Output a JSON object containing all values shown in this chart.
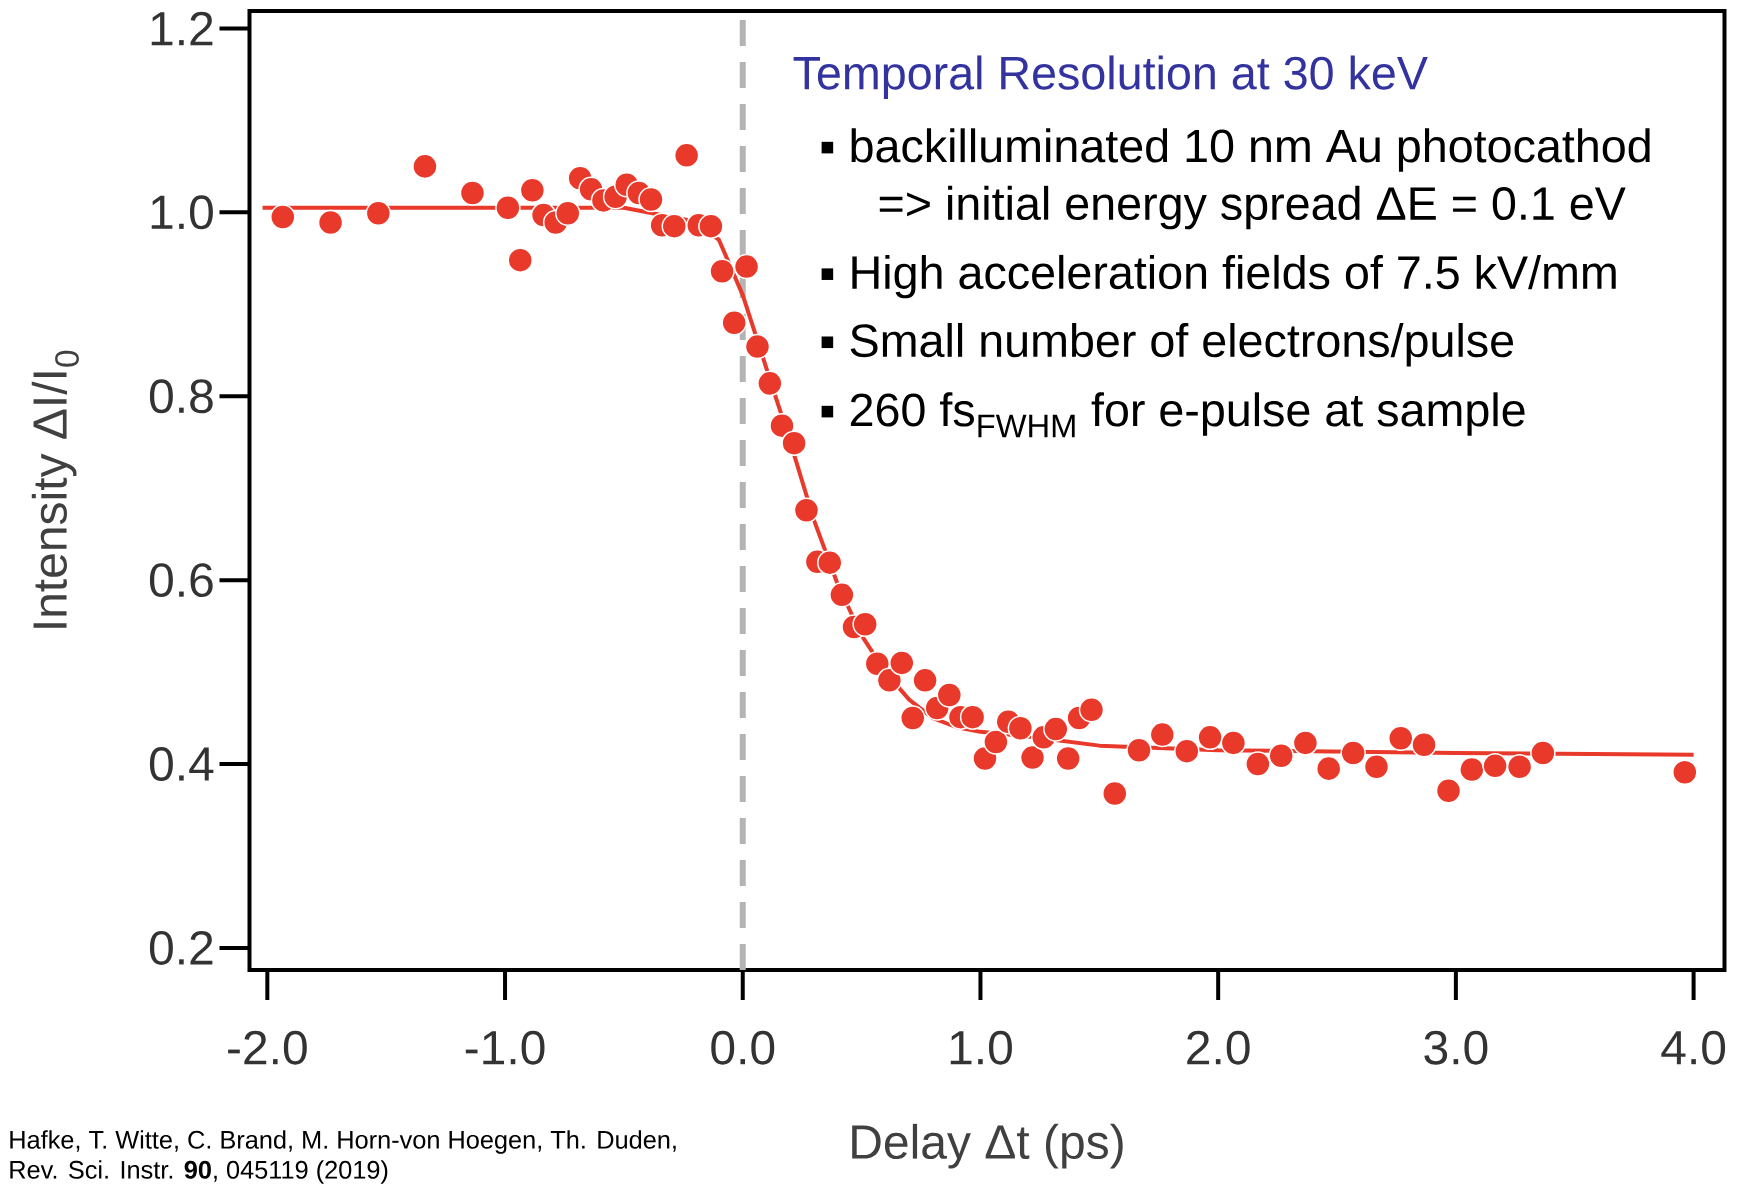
{
  "chart_data": {
    "type": "scatter",
    "xlabel": "Delay Δt (ps)",
    "ylabel": "Intensity ΔI/I$_{0}$",
    "xlim": [
      -2.075,
      4.13
    ],
    "ylim": [
      0.176,
      1.219
    ],
    "xticks": [
      {
        "value": -2,
        "label": "-2.0"
      },
      {
        "value": -1,
        "label": "-1.0"
      },
      {
        "value": 0,
        "label": "0.0"
      },
      {
        "value": 1,
        "label": "1.0"
      },
      {
        "value": 2,
        "label": "2.0"
      },
      {
        "value": 3,
        "label": "3.0"
      },
      {
        "value": 4,
        "label": "4.0"
      }
    ],
    "yticks": [
      {
        "value": 0.2,
        "label": "0.2"
      },
      {
        "value": 0.4,
        "label": "0.4"
      },
      {
        "value": 0.6,
        "label": "0.6"
      },
      {
        "value": 0.8,
        "label": "0.8"
      },
      {
        "value": 1.0,
        "label": "1.0"
      },
      {
        "value": 1.2,
        "label": "1.2"
      }
    ],
    "marker": "circle",
    "series": [
      {
        "type": "scatter",
        "color": "#e8392b",
        "x": [
          -1.935,
          -1.734,
          -1.533,
          -1.337,
          -1.137,
          -0.988,
          -0.936,
          -0.885,
          -0.838,
          -0.787,
          -0.736,
          -0.684,
          -0.638,
          -0.586,
          -0.535,
          -0.488,
          -0.437,
          -0.386,
          -0.339,
          -0.288,
          -0.236,
          -0.185,
          -0.134,
          -0.087,
          -0.036,
          0.016,
          0.062,
          0.114,
          0.165,
          0.216,
          0.268,
          0.314,
          0.366,
          0.417,
          0.468,
          0.515,
          0.566,
          0.617,
          0.669,
          0.715,
          0.767,
          0.818,
          0.869,
          0.916,
          0.967,
          1.019,
          1.065,
          1.117,
          1.168,
          1.219,
          1.266,
          1.317,
          1.369,
          1.415,
          1.467,
          1.565,
          1.667,
          1.765,
          1.868,
          1.966,
          2.064,
          2.167,
          2.265,
          2.367,
          2.465,
          2.568,
          2.666,
          2.768,
          2.866,
          2.969,
          3.067,
          3.165,
          3.268,
          3.366,
          3.963
        ],
        "values": [
          0.995,
          0.989,
          0.999,
          1.05,
          1.021,
          1.005,
          0.948,
          1.024,
          0.997,
          0.989,
          0.999,
          1.037,
          1.025,
          1.013,
          1.017,
          1.03,
          1.021,
          1.014,
          0.986,
          0.985,
          1.062,
          0.986,
          0.985,
          0.936,
          0.88,
          0.941,
          0.854,
          0.814,
          0.768,
          0.749,
          0.676,
          0.62,
          0.619,
          0.584,
          0.549,
          0.552,
          0.509,
          0.491,
          0.51,
          0.45,
          0.491,
          0.461,
          0.475,
          0.451,
          0.451,
          0.406,
          0.424,
          0.446,
          0.439,
          0.407,
          0.429,
          0.438,
          0.406,
          0.45,
          0.459,
          0.368,
          0.415,
          0.432,
          0.414,
          0.429,
          0.423,
          0.4,
          0.409,
          0.423,
          0.395,
          0.412,
          0.397,
          0.428,
          0.421,
          0.371,
          0.394,
          0.398,
          0.397,
          0.412,
          0.391
        ]
      },
      {
        "type": "line",
        "color": "#e8392b",
        "marker": "none",
        "x": [
          -2.02,
          -0.5,
          -0.2,
          -0.1,
          0.0,
          0.1,
          0.2,
          0.3,
          0.4,
          0.5,
          0.6,
          0.7,
          0.8,
          0.9,
          1.0,
          1.2,
          1.5,
          2.0,
          3.0,
          4.0
        ],
        "values": [
          1.005,
          1.005,
          0.99,
          0.97,
          0.91,
          0.83,
          0.75,
          0.665,
          0.595,
          0.54,
          0.5,
          0.47,
          0.45,
          0.44,
          0.435,
          0.43,
          0.42,
          0.415,
          0.412,
          0.41
        ]
      }
    ],
    "ref_lines": [
      {
        "axis": "x",
        "value": 0,
        "color": "#b4b4b4",
        "line_style": "dashed"
      }
    ],
    "annotations": [
      "Temporal Resolution at 30 keV",
      "▪ backilluminated 10 nm Au photocathod",
      "=> initial energy spread ΔE = 0.1 eV",
      "▪ High acceleration fields of 7.5 kV/mm",
      "▪ Small number of electrons/pulse",
      "▪ 260 fs$_{FWHM}$ for e-pulse at sample",
      "Hafke, T. Witte, C. Brand, M. Horn-von Hoegen, Th. Duden,",
      "Rev. Sci. Instr. **90**, 045119 (2019)"
    ]
  }
}
